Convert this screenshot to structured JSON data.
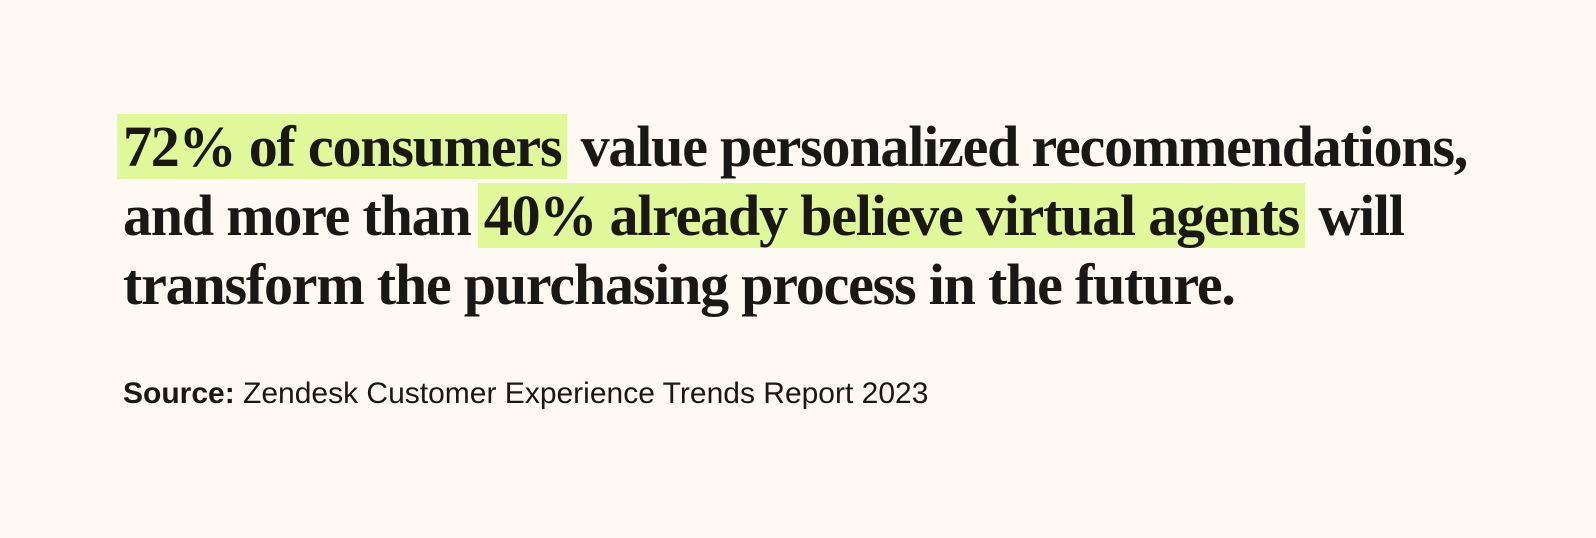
{
  "quote": {
    "highlight_1": "72% of consumers",
    "text_1": " value personalized recommendations, and more than ",
    "highlight_2": "40% already believe virtual agents",
    "text_2": " will transform the purchasing process in the future."
  },
  "source": {
    "label": "Source:",
    "text": " Zendesk Customer Experience Trends Report 2023"
  },
  "colors": {
    "background": "#fef9f3",
    "highlight": "#e0f79a",
    "text": "#1a1814"
  }
}
